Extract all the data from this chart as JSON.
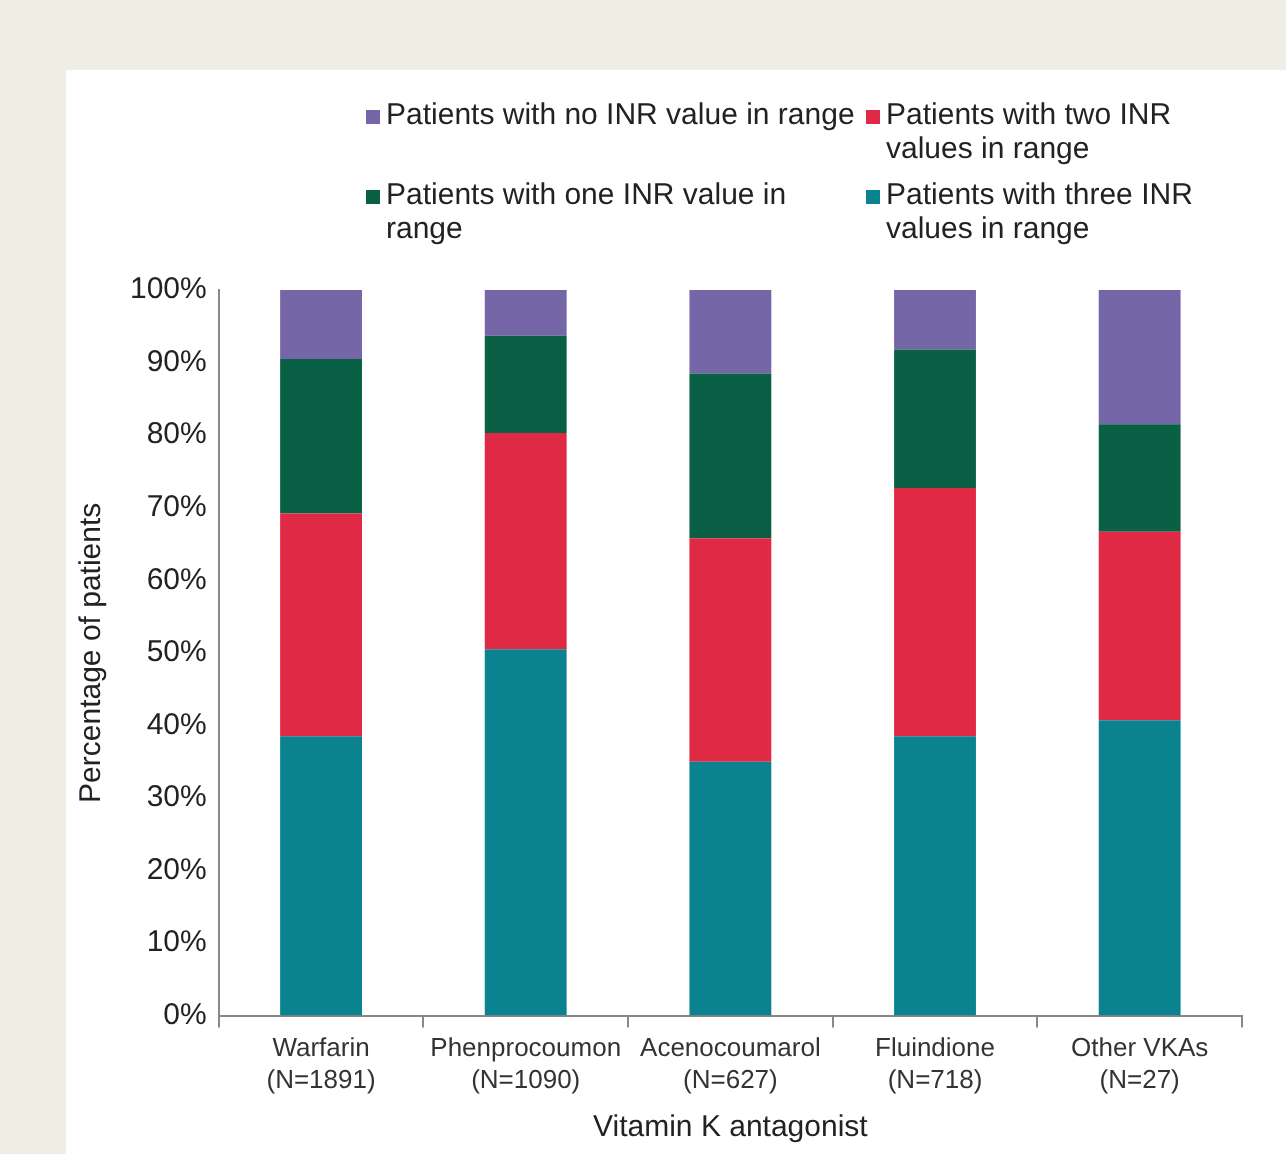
{
  "chart_data": {
    "type": "bar",
    "stacked": true,
    "categories": [
      "Warfarin\n(N=1891)",
      "Phenprocoumon\n(N=1090)",
      "Acenocoumarol\n(N=627)",
      "Fluindione\n(N=718)",
      "Other VKAs\n(N=27)"
    ],
    "series": [
      {
        "name": "Patients with three INR values in range",
        "color": "#0b8290",
        "values": [
          38.5,
          50.5,
          35.0,
          38.5,
          40.7
        ]
      },
      {
        "name": "Patients with two INR values in range",
        "color": "#e02a45",
        "values": [
          30.7,
          29.8,
          30.8,
          34.2,
          26.0
        ]
      },
      {
        "name": "Patients with one INR value in range",
        "color": "#0a6045",
        "values": [
          21.3,
          13.4,
          22.7,
          19.1,
          14.8
        ]
      },
      {
        "name": "Patients with no INR value in range",
        "color": "#7566a8",
        "values": [
          9.5,
          6.3,
          11.5,
          8.2,
          18.5
        ]
      }
    ],
    "xlabel": "Vitamin K antagonist",
    "ylabel": "Percentage of patients",
    "ylim": [
      0,
      100
    ],
    "yticks": [
      {
        "value": 0,
        "label": "0%"
      },
      {
        "value": 10,
        "label": "10%"
      },
      {
        "value": 20,
        "label": "20%"
      },
      {
        "value": 30,
        "label": "30%"
      },
      {
        "value": 40,
        "label": "40%"
      },
      {
        "value": 50,
        "label": "50%"
      },
      {
        "value": 60,
        "label": "60%"
      },
      {
        "value": 70,
        "label": "70%"
      },
      {
        "value": 80,
        "label": "80%"
      },
      {
        "value": 90,
        "label": "90%"
      },
      {
        "value": 100,
        "label": "100%"
      }
    ],
    "grid": false,
    "legend": "top"
  }
}
